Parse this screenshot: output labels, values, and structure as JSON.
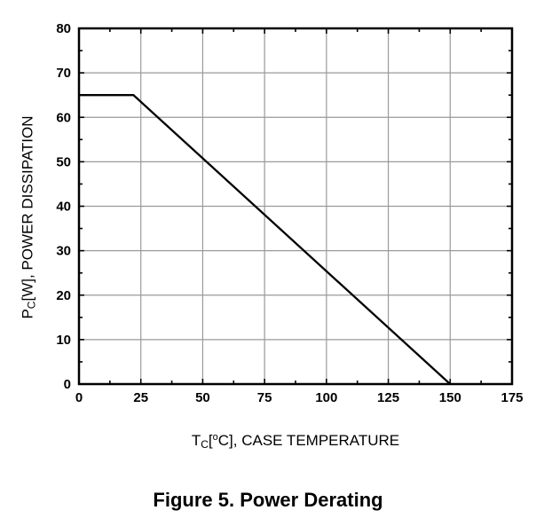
{
  "caption": "Figure 5. Power Derating",
  "chart_data": {
    "type": "line",
    "title": "Figure 5. Power Derating",
    "xlabel": "TC[°C], CASE TEMPERATURE",
    "ylabel": "PC[W], POWER DISSIPATION",
    "xlabel_parts": [
      {
        "t": "T"
      },
      {
        "t": "C",
        "style": "sub"
      },
      {
        "t": "["
      },
      {
        "t": "o",
        "style": "sup"
      },
      {
        "t": "C], CASE TEMPERATURE"
      }
    ],
    "ylabel_parts": [
      {
        "t": "P"
      },
      {
        "t": "C",
        "style": "sub"
      },
      {
        "t": "[W], POWER DISSIPATION"
      }
    ],
    "xlim": [
      0,
      175
    ],
    "ylim": [
      0,
      80
    ],
    "x_major_ticks": [
      0,
      25,
      50,
      75,
      100,
      125,
      150,
      175
    ],
    "y_major_ticks": [
      0,
      10,
      20,
      30,
      40,
      50,
      60,
      70,
      80
    ],
    "x_minor_step": 12.5,
    "y_minor_step": 5,
    "grid": true,
    "legend": "none",
    "series": [
      {
        "name": "power-derating-curve",
        "points": [
          [
            0,
            65
          ],
          [
            22,
            65
          ],
          [
            150,
            0
          ]
        ],
        "color": "#000000"
      }
    ],
    "colors": {
      "axis": "#000000",
      "grid": "#9a9a9a",
      "text": "#000000",
      "background": "#ffffff"
    }
  }
}
